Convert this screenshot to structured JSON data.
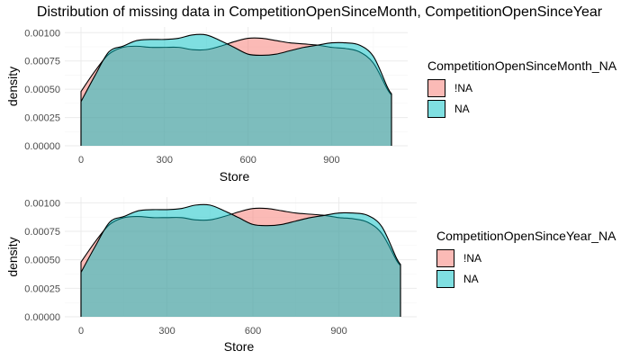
{
  "title": "Distribution of missing data in CompetitionOpenSinceMonth, CompetitionOpenSinceYear",
  "colors": {
    "not_na": "#F8766D",
    "na": "#00BFC4",
    "grid_major": "#ebebeb",
    "grid_minor": "#f5f5f5"
  },
  "chart_data": [
    {
      "type": "area",
      "subtype": "density",
      "title": "",
      "xlabel": "Store",
      "ylabel": "density",
      "xlim": [
        0,
        1115
      ],
      "ylim": [
        0,
        0.00105
      ],
      "x_ticks": [
        0,
        300,
        600,
        900
      ],
      "x_tick_labels": [
        "0",
        "300",
        "600",
        "900"
      ],
      "y_ticks": [
        0,
        0.00025,
        0.0005,
        0.00075,
        0.001
      ],
      "y_tick_labels": [
        "0.00000",
        "0.00025",
        "0.00050",
        "0.00075",
        "0.00100"
      ],
      "grid": true,
      "legend": {
        "title": "CompetitionOpenSinceMonth_NA",
        "position": "right",
        "entries": [
          "!NA",
          "NA"
        ]
      },
      "x": [
        0,
        50,
        100,
        150,
        200,
        250,
        300,
        350,
        400,
        450,
        500,
        550,
        600,
        650,
        700,
        750,
        800,
        850,
        900,
        950,
        1000,
        1050,
        1100,
        1115
      ],
      "series": [
        {
          "name": "!NA",
          "values": [
            0.00048,
            0.00066,
            0.00081,
            0.00087,
            0.00088,
            0.00087,
            0.00087,
            0.00087,
            0.00085,
            0.00085,
            0.00088,
            0.00092,
            0.00095,
            0.00095,
            0.00093,
            0.00091,
            0.0009,
            0.00089,
            0.00087,
            0.00086,
            0.00083,
            0.00073,
            0.0005,
            0.00045
          ]
        },
        {
          "name": "NA",
          "values": [
            0.00039,
            0.00062,
            0.00083,
            0.00088,
            0.00093,
            0.00094,
            0.00094,
            0.00095,
            0.00098,
            0.00098,
            0.00093,
            0.00087,
            0.00081,
            0.0008,
            0.00081,
            0.00084,
            0.00087,
            0.00089,
            0.00091,
            0.00091,
            0.00089,
            0.00079,
            0.00052,
            0.00046
          ]
        }
      ]
    },
    {
      "type": "area",
      "subtype": "density",
      "title": "",
      "xlabel": "Store",
      "ylabel": "density",
      "xlim": [
        0,
        1115
      ],
      "ylim": [
        0,
        0.00105
      ],
      "x_ticks": [
        0,
        300,
        600,
        900
      ],
      "x_tick_labels": [
        "0",
        "300",
        "600",
        "900"
      ],
      "y_ticks": [
        0,
        0.00025,
        0.0005,
        0.00075,
        0.001
      ],
      "y_tick_labels": [
        "0.00000",
        "0.00025",
        "0.00050",
        "0.00075",
        "0.00100"
      ],
      "grid": true,
      "legend": {
        "title": "CompetitionOpenSinceYear_NA",
        "position": "right",
        "entries": [
          "!NA",
          "NA"
        ]
      },
      "x": [
        0,
        50,
        100,
        150,
        200,
        250,
        300,
        350,
        400,
        450,
        500,
        550,
        600,
        650,
        700,
        750,
        800,
        850,
        900,
        950,
        1000,
        1050,
        1100,
        1115
      ],
      "series": [
        {
          "name": "!NA",
          "values": [
            0.00048,
            0.00066,
            0.00081,
            0.00087,
            0.00088,
            0.00087,
            0.00087,
            0.00087,
            0.00085,
            0.00085,
            0.00088,
            0.00092,
            0.00095,
            0.00095,
            0.00093,
            0.00091,
            0.0009,
            0.00089,
            0.00087,
            0.00086,
            0.00083,
            0.00073,
            0.0005,
            0.00045
          ]
        },
        {
          "name": "NA",
          "values": [
            0.00039,
            0.00062,
            0.00083,
            0.00088,
            0.00093,
            0.00094,
            0.00094,
            0.00095,
            0.00098,
            0.00098,
            0.00093,
            0.00087,
            0.00081,
            0.0008,
            0.00081,
            0.00084,
            0.00087,
            0.00089,
            0.00091,
            0.00091,
            0.00089,
            0.00079,
            0.00052,
            0.00046
          ]
        }
      ]
    }
  ]
}
